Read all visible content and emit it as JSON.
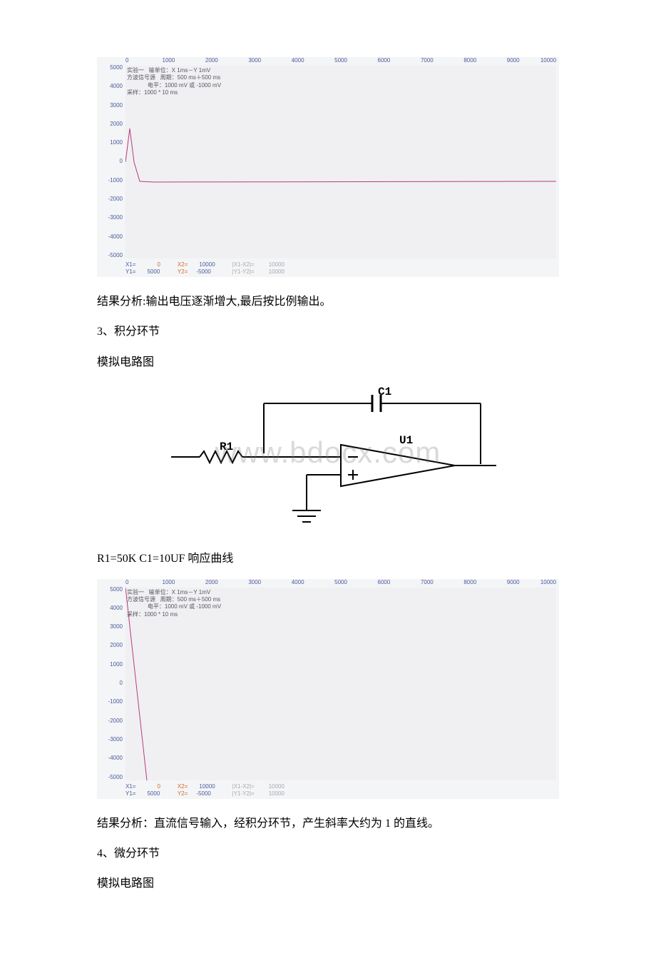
{
  "chart1": {
    "type": "line",
    "top_ticks": [
      "0",
      "1000",
      "2000",
      "3000",
      "4000",
      "5000",
      "6000",
      "7000",
      "8000",
      "9000",
      "10000"
    ],
    "y_ticks": [
      "5000",
      "4000",
      "3000",
      "2000",
      "1000",
      "0",
      "-1000",
      "-2000",
      "-3000",
      "-4000",
      "-5000"
    ],
    "annotation": "实验一   输单位：X 1ms－Y 1mV\n方波信号源   周期：500 ms＋500 ms\n             电平：1000 mV 或 -1000 mV\n采样：1000 * 10 ms",
    "line_color": "#b83b7a",
    "background_color": "#f0f0f3",
    "tick_color": "#4a5a9e",
    "readout_X1_label": "X1=",
    "readout_X1_val": "0",
    "readout_Y1_label": "Y1=",
    "readout_Y1_val": "5000",
    "readout_X2_label": "X2=",
    "readout_X2_val": "10000",
    "readout_Y2_label": "Y2=",
    "readout_Y2_val": "-5000",
    "readout_dX_label": "|X1-X2|=",
    "readout_dX_val": "10000",
    "readout_dY_label": "|Y1-Y2|=",
    "readout_dY_val": "10000",
    "path_points": [
      [
        0,
        135
      ],
      [
        6,
        88
      ],
      [
        12,
        135
      ],
      [
        20,
        162
      ],
      [
        40,
        163
      ],
      [
        604,
        162
      ]
    ]
  },
  "text_result1": "结果分析:输出电压逐渐增大,最后按比例输出。",
  "section3_num": "3、积分环节",
  "section3_label": "模拟电路图",
  "circuit": {
    "label_C1": "C1",
    "label_R1": "R1",
    "label_U1": "U1",
    "watermark": "www.bdocx.com"
  },
  "params_line": "R1=50K C1=10UF 响应曲线",
  "chart2": {
    "type": "line",
    "top_ticks": [
      "0",
      "1000",
      "2000",
      "3000",
      "4000",
      "5000",
      "6000",
      "7000",
      "8000",
      "9000",
      "10000"
    ],
    "y_ticks": [
      "5000",
      "4000",
      "3000",
      "2000",
      "1000",
      "0",
      "-1000",
      "-2000",
      "-3000",
      "-4000",
      "-5000"
    ],
    "annotation": "实验一   输单位：X 1ms－Y 1mV\n方波信号源   周期：500 ms＋500 ms\n             电平：1000 mV 或 -1000 mV\n采样：1000 * 10 ms",
    "line_color": "#b83b7a",
    "background_color": "#f0f0f3",
    "tick_color": "#4a5a9e",
    "readout_X1_label": "X1=",
    "readout_X1_val": "0",
    "readout_Y1_label": "Y1=",
    "readout_Y1_val": "5000",
    "readout_X2_label": "X2=",
    "readout_X2_val": "10000",
    "readout_Y2_label": "Y2=",
    "readout_Y2_val": "-5000",
    "readout_dX_label": "|X1-X2|=",
    "readout_dX_val": "10000",
    "readout_dY_label": "|Y1-Y2|=",
    "readout_dY_val": "10000",
    "path_points": [
      [
        0,
        0
      ],
      [
        30,
        270
      ]
    ]
  },
  "text_result2": "结果分析：直流信号输入，经积分环节，产生斜率大约为 1 的直线。",
  "section4_num": "4、微分环节",
  "section4_label": "模拟电路图"
}
